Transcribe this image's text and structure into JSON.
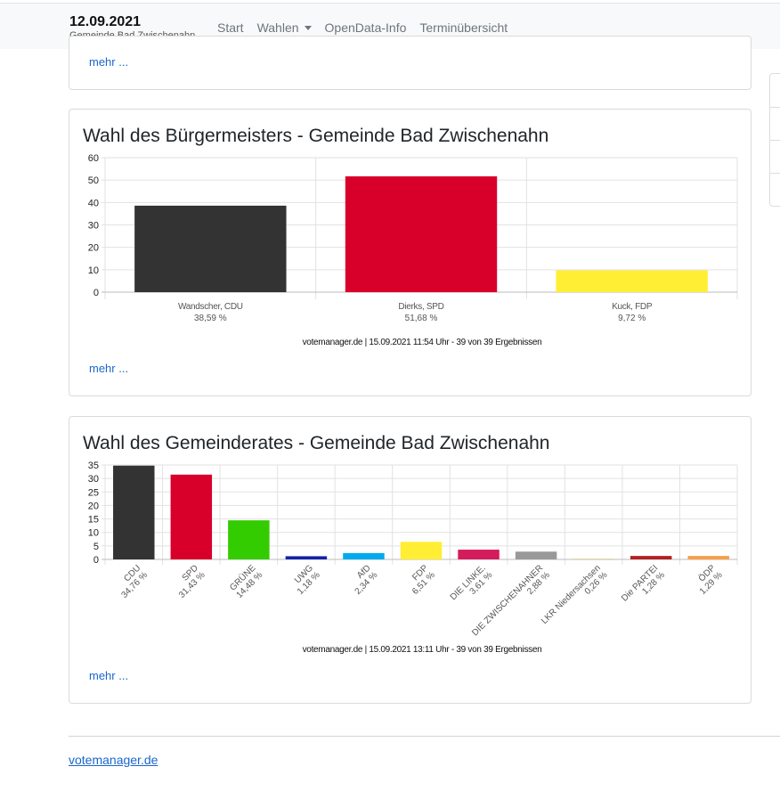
{
  "header": {
    "date": "12.09.2021",
    "subtitle": "Gemeinde Bad Zwischenahn",
    "nav": [
      "Start",
      "Wahlen",
      "OpenData-Info",
      "Terminübersicht"
    ]
  },
  "top_card": {
    "more": "mehr ..."
  },
  "mayor_card": {
    "title": "Wahl des Bürgermeisters - Gemeinde Bad Zwischenahn",
    "more": "mehr ...",
    "source_note": "votemanager.de | 15.09.2021 11:54 Uhr - 39 von 39 Ergebnissen"
  },
  "council_card": {
    "title": "Wahl des Gemeinderates - Gemeinde Bad Zwischenahn",
    "more": "mehr ...",
    "source_note": "votemanager.de | 15.09.2021 13:11 Uhr - 39 von 39 Ergebnissen"
  },
  "footer": {
    "link": "votemanager.de"
  },
  "chart_data": [
    {
      "type": "bar",
      "categories": [
        "Wandscher, CDU",
        "Dierks, SPD",
        "Kuck, FDP"
      ],
      "value_labels": [
        "38,59 %",
        "51,68 %",
        "9,72 %"
      ],
      "values": [
        38.59,
        51.68,
        9.72
      ],
      "colors": [
        "#333333",
        "#d8002b",
        "#ffee33"
      ],
      "ylim": [
        0,
        60
      ],
      "yticks": [
        0,
        10,
        20,
        30,
        40,
        50,
        60
      ],
      "grid": true
    },
    {
      "type": "bar",
      "categories": [
        "CDU",
        "SPD",
        "GRÜNE",
        "UWG",
        "AfD",
        "FDP",
        "DIE LINKE.",
        "DIE ZWISCHENAHNER",
        "LKR Niedersachsen",
        "Die PARTEI",
        "ÖDP"
      ],
      "value_labels": [
        "34,76 %",
        "31,43 %",
        "14,48 %",
        "1,18 %",
        "2,34 %",
        "6,51 %",
        "3,61 %",
        "2,88 %",
        "0,26 %",
        "1,28 %",
        "1,29 %"
      ],
      "values": [
        34.76,
        31.43,
        14.48,
        1.18,
        2.34,
        6.51,
        3.61,
        2.88,
        0.26,
        1.28,
        1.29
      ],
      "colors": [
        "#333333",
        "#d8002b",
        "#33cc00",
        "#1122aa",
        "#00aaee",
        "#ffee33",
        "#d41b5c",
        "#999999",
        "#ddcc88",
        "#b22222",
        "#f5a04a"
      ],
      "ylim": [
        0,
        35
      ],
      "yticks": [
        0,
        5,
        10,
        15,
        20,
        25,
        30,
        35
      ],
      "grid": true
    }
  ]
}
